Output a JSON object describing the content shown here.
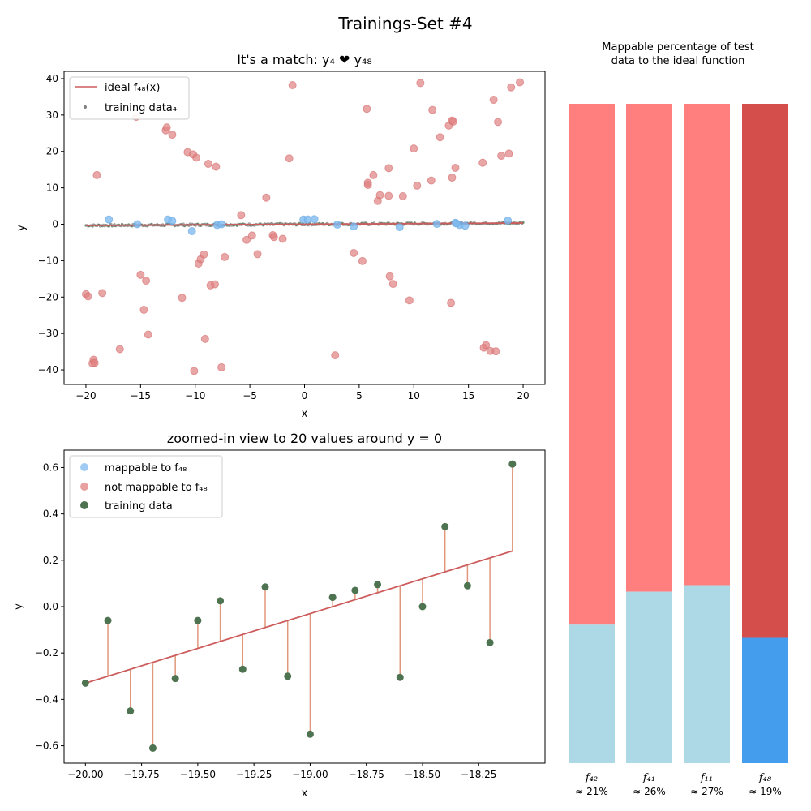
{
  "suptitle": "Trainings-Set #4",
  "chart_data": [
    {
      "id": "overview",
      "type": "scatter",
      "title": "It's a match: y₄ ❤ y₄₈",
      "xlabel": "x",
      "ylabel": "y",
      "xlim": [
        -22,
        22
      ],
      "ylim": [
        -44,
        42
      ],
      "xticks": [
        -20,
        -15,
        -10,
        -5,
        0,
        5,
        10,
        15,
        20
      ],
      "yticks": [
        -40,
        -30,
        -20,
        -10,
        0,
        10,
        20,
        30,
        40
      ],
      "grid": false,
      "legend_position": "top-left",
      "legend": [
        "ideal f₄₈(x)",
        "training data₄"
      ],
      "ideal_line": {
        "name": "ideal f₄₈(x)",
        "color": "#cd5c5c",
        "x": [
          -20,
          20
        ],
        "y": [
          -0.33,
          0.33
        ]
      },
      "training_series": {
        "name": "training data₄",
        "color": "#808080",
        "x_range": [
          -20,
          20
        ],
        "count": 400,
        "amplitude": 0.3
      },
      "not_mappable": {
        "color": "#e08080",
        "points": [
          [
            -20,
            -19.2
          ],
          [
            -19.8,
            -19.8
          ],
          [
            -19.4,
            -38.2
          ],
          [
            -19.3,
            -37.2
          ],
          [
            -19.2,
            -38.1
          ],
          [
            -19,
            13.5
          ],
          [
            -18.5,
            -18.9
          ],
          [
            -16.9,
            -34.3
          ],
          [
            -15.4,
            29.5
          ],
          [
            -15,
            -13.9
          ],
          [
            -14.7,
            -23.5
          ],
          [
            -14.5,
            -15.5
          ],
          [
            -14.3,
            -30.3
          ],
          [
            -12.7,
            25.8
          ],
          [
            -12.6,
            26.6
          ],
          [
            -12.1,
            24.6
          ],
          [
            -11.2,
            -20.2
          ],
          [
            -10.7,
            19.8
          ],
          [
            -10.2,
            19.2
          ],
          [
            -10.1,
            -40.3
          ],
          [
            -9.9,
            18.3
          ],
          [
            -9.7,
            -10.8
          ],
          [
            -9.5,
            -9.6
          ],
          [
            -9.2,
            -8.3
          ],
          [
            -9.1,
            -31.5
          ],
          [
            -8.8,
            16.6
          ],
          [
            -8.6,
            -16.8
          ],
          [
            -8.2,
            -16.5
          ],
          [
            -8.1,
            15.8
          ],
          [
            -7.6,
            -39.3
          ],
          [
            -7.3,
            -9
          ],
          [
            -5.8,
            2.5
          ],
          [
            -5.3,
            -4.3
          ],
          [
            -4.8,
            -3.1
          ],
          [
            -4.3,
            -8.2
          ],
          [
            -3.5,
            7.3
          ],
          [
            -2.9,
            -3
          ],
          [
            -2.8,
            -3.5
          ],
          [
            -2,
            -4
          ],
          [
            -1.4,
            18.1
          ],
          [
            -1.1,
            38.2
          ],
          [
            2.8,
            -36
          ],
          [
            4.5,
            -7.9
          ],
          [
            5.3,
            -10.1
          ],
          [
            5.7,
            31.7
          ],
          [
            5.8,
            11.4
          ],
          [
            5.8,
            10.8
          ],
          [
            6.3,
            13.5
          ],
          [
            6.7,
            6.4
          ],
          [
            6.9,
            8
          ],
          [
            7.7,
            15.4
          ],
          [
            7.8,
            -14.3
          ],
          [
            7.7,
            7.8
          ],
          [
            8.1,
            -16.4
          ],
          [
            9,
            7.7
          ],
          [
            9.6,
            -20.9
          ],
          [
            10,
            20.8
          ],
          [
            10.3,
            10.6
          ],
          [
            10.6,
            38.8
          ],
          [
            11.6,
            12
          ],
          [
            11.7,
            31.4
          ],
          [
            12.4,
            23.9
          ],
          [
            13.2,
            27.1
          ],
          [
            13.5,
            28.5
          ],
          [
            13.6,
            28.2
          ],
          [
            13.4,
            -21.6
          ],
          [
            13.5,
            12.8
          ],
          [
            13.8,
            15.5
          ],
          [
            16.3,
            16.9
          ],
          [
            16.4,
            -33.9
          ],
          [
            16.6,
            -33.2
          ],
          [
            17,
            -34.8
          ],
          [
            17.3,
            34.2
          ],
          [
            17.7,
            28.1
          ],
          [
            17.5,
            -34.9
          ],
          [
            18,
            18.8
          ],
          [
            18.7,
            19.4
          ],
          [
            18.9,
            37.6
          ],
          [
            19.7,
            39
          ]
        ]
      },
      "mappable": {
        "color": "#7fbaf0",
        "points": [
          [
            -17.9,
            1.3
          ],
          [
            -15.3,
            0
          ],
          [
            -12.5,
            1.3
          ],
          [
            -12.1,
            0.9
          ],
          [
            -10.3,
            -1.9
          ],
          [
            -8,
            -0.2
          ],
          [
            -7.6,
            0
          ],
          [
            -0.1,
            1.3
          ],
          [
            0.3,
            1.3
          ],
          [
            0.9,
            1.4
          ],
          [
            3,
            -0.1
          ],
          [
            4.5,
            -0.6
          ],
          [
            8.7,
            -0.8
          ],
          [
            12.1,
            0.1
          ],
          [
            13.8,
            0.4
          ],
          [
            14.2,
            -0.2
          ],
          [
            14.7,
            -0.4
          ],
          [
            13.9,
            0.2
          ],
          [
            18.6,
            1
          ]
        ]
      }
    },
    {
      "id": "zoom",
      "type": "scatter",
      "title": "zoomed-in view to 20 values around y = 0",
      "xlabel": "x",
      "ylabel": "y",
      "xlim": [
        -20.095,
        -17.955
      ],
      "ylim": [
        -0.675,
        0.675
      ],
      "xticks": [
        -20.0,
        -19.75,
        -19.5,
        -19.25,
        -19.0,
        -18.75,
        -18.5,
        -18.25
      ],
      "xtick_labels": [
        "−20.00",
        "−19.75",
        "−19.50",
        "−19.25",
        "−19.00",
        "−18.75",
        "−18.50",
        "−18.25"
      ],
      "yticks": [
        -0.6,
        -0.4,
        -0.2,
        0.0,
        0.2,
        0.4,
        0.6
      ],
      "ytick_labels": [
        "−0.6",
        "−0.4",
        "−0.2",
        "0.0",
        "0.2",
        "0.4",
        "0.6"
      ],
      "grid": false,
      "legend_position": "top-left",
      "legend": [
        "mappable to f₄₈",
        "not mappable to f₄₈",
        "training data"
      ],
      "legend_colors": [
        "#7fbaf0",
        "#e08080",
        "#4e7350"
      ],
      "ideal_line": {
        "color": "#cd5c5c",
        "x": [
          -20,
          -18.1
        ],
        "y": [
          -0.33,
          0.24
        ]
      },
      "residual_color": "#e0977a",
      "training_points": {
        "color": "#4e7350",
        "x": [
          -20.0,
          -19.9,
          -19.8,
          -19.7,
          -19.6,
          -19.5,
          -19.4,
          -19.3,
          -19.2,
          -19.1,
          -19.0,
          -18.9,
          -18.8,
          -18.7,
          -18.6,
          -18.5,
          -18.4,
          -18.3,
          -18.2,
          -18.1
        ],
        "y": [
          -0.33,
          -0.06,
          -0.45,
          -0.61,
          -0.31,
          -0.06,
          0.025,
          -0.27,
          0.085,
          -0.3,
          -0.55,
          0.04,
          0.07,
          0.095,
          -0.305,
          0.0,
          0.345,
          0.09,
          -0.155,
          0.615
        ]
      }
    },
    {
      "id": "mappable_bars",
      "type": "bar",
      "title": "Mappable percentage of test data to the ideal function",
      "title_lines": [
        "Mappable percentage of test",
        "data to the ideal function"
      ],
      "categories": [
        "f₄₂",
        "f₄₁",
        "f₁₁",
        "f₄₈"
      ],
      "category_labels": [
        "≈ 21%",
        "≈ 26%",
        "≈ 27%",
        "≈ 19%"
      ],
      "values": [
        21,
        26,
        27,
        19
      ],
      "ylim": [
        0,
        100
      ],
      "stacked": true,
      "bottom_colors": [
        "#add8e6",
        "#add8e6",
        "#add8e6",
        "#459ded"
      ],
      "top_colors": [
        "#ff7f7f",
        "#ff7f7f",
        "#ff7f7f",
        "#d44f4c"
      ]
    }
  ]
}
